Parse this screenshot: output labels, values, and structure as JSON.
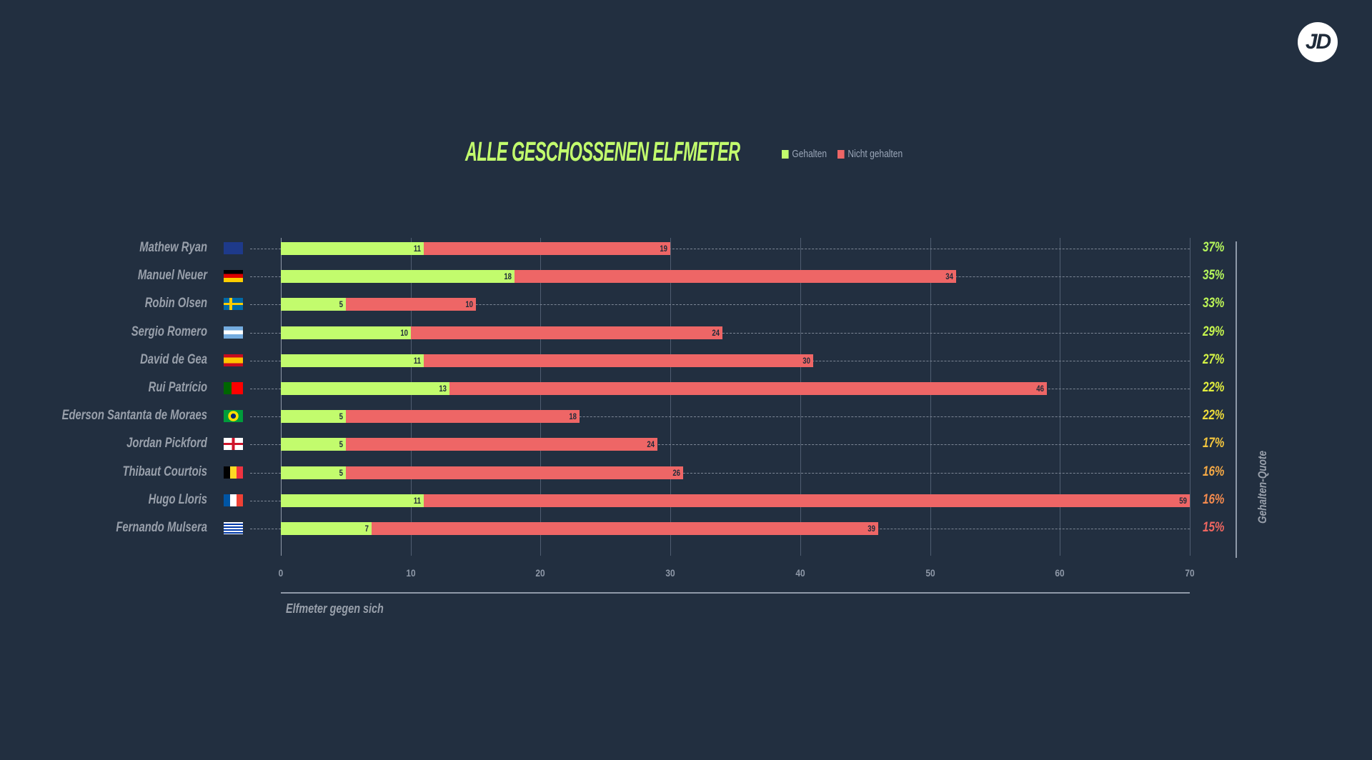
{
  "logo": "JD",
  "chart_data": {
    "type": "bar",
    "stacked": true,
    "orientation": "horizontal",
    "title": "ALLE GESCHOSSENEN ELFMETER",
    "xlabel": "Elfmeter gegen sich",
    "ylabel_right": "Gehalten-Quote",
    "xlim": [
      0,
      70
    ],
    "xticks": [
      0,
      10,
      20,
      30,
      40,
      50,
      60,
      70
    ],
    "grid": true,
    "legend_position": "top",
    "colors": {
      "Gehalten": "#c2fc6d",
      "Nicht gehalten": "#ee6666"
    },
    "categories": [
      "Mathew Ryan",
      "Manuel Neuer",
      "Robin Olsen",
      "Sergio Romero",
      "David de Gea",
      "Rui Patrício",
      "Ederson Santanta de Moraes",
      "Jordan Pickford",
      "Thibaut Courtois",
      "Hugo Lloris",
      "Fernando Mulsera"
    ],
    "flags": [
      "australia",
      "germany",
      "sweden",
      "argentina",
      "spain",
      "portugal",
      "brazil",
      "england",
      "belgium",
      "france",
      "uruguay"
    ],
    "series": [
      {
        "name": "Gehalten",
        "values": [
          11,
          18,
          5,
          10,
          11,
          13,
          5,
          5,
          5,
          11,
          7
        ]
      },
      {
        "name": "Nicht gehalten",
        "values": [
          19,
          34,
          10,
          24,
          30,
          46,
          18,
          24,
          26,
          59,
          39
        ]
      }
    ],
    "quote": [
      "37%",
      "35%",
      "33%",
      "29%",
      "27%",
      "22%",
      "22%",
      "17%",
      "16%",
      "16%",
      "15%"
    ],
    "quote_colors": [
      "#b4f55c",
      "#b4f55c",
      "#bdf556",
      "#c6f54e",
      "#d3f245",
      "#e3ef3e",
      "#eedb3a",
      "#f4c63e",
      "#f5a945",
      "#f48a4e",
      "#ef6660"
    ]
  }
}
